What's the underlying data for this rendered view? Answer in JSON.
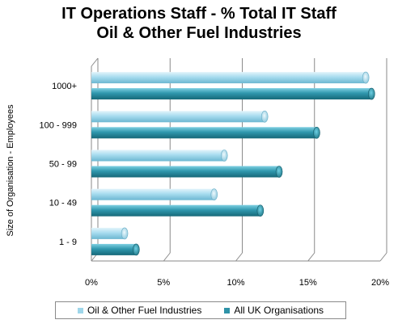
{
  "chart_data": {
    "type": "bar",
    "orientation": "horizontal",
    "title": "IT Operations Staff - % Total IT Staff",
    "subtitle": "Oil & Other Fuel Industries",
    "ylabel": "Size of Organisation - Employees",
    "xlabel": "",
    "categories": [
      "1000+",
      "100 - 999",
      "50 - 99",
      "10 - 49",
      "1 - 9"
    ],
    "series": [
      {
        "name": "Oil & Other Fuel Industries",
        "color": "#9fd6ea",
        "values": [
          19.0,
          12.0,
          9.2,
          8.5,
          2.3
        ]
      },
      {
        "name": "All UK Organisations",
        "color": "#2f93a8",
        "values": [
          19.4,
          15.6,
          13.0,
          11.7,
          3.1
        ]
      }
    ],
    "xlim": [
      0,
      20
    ],
    "xticks": [
      0,
      5,
      10,
      15,
      20
    ],
    "xtick_labels": [
      "0%",
      "5%",
      "10%",
      "15%",
      "20%"
    ],
    "grid": true,
    "legend_position": "bottom"
  }
}
